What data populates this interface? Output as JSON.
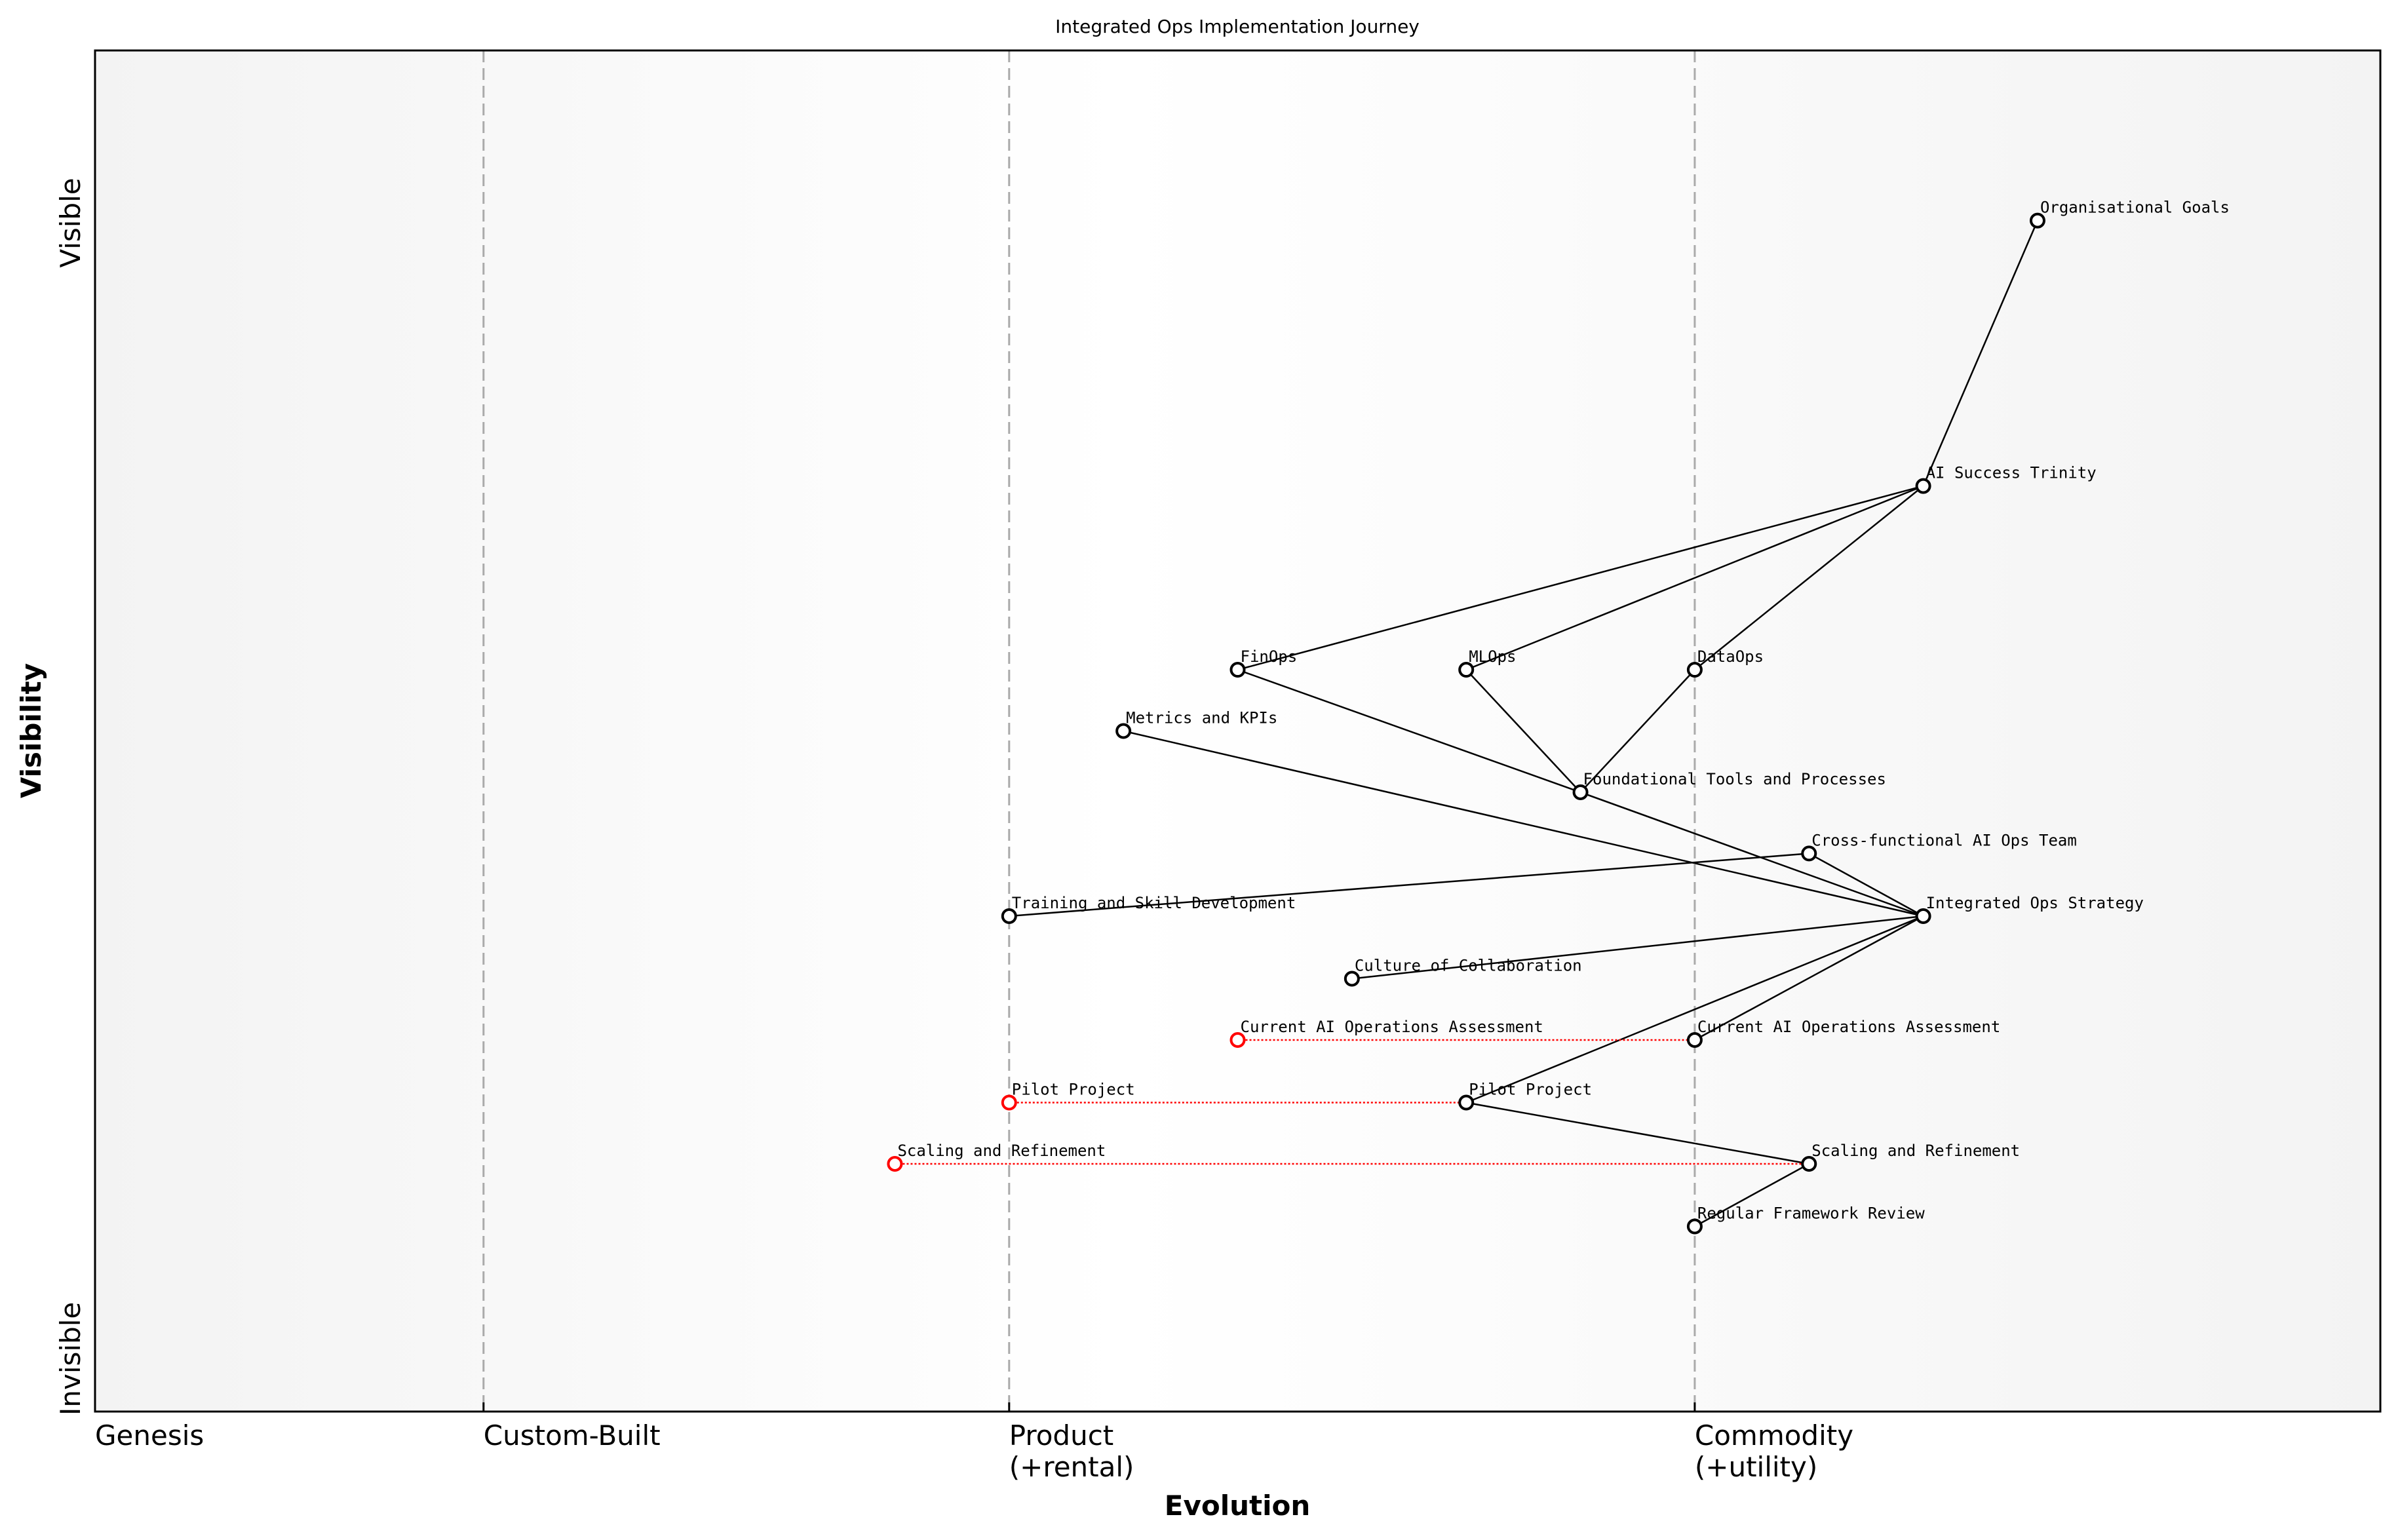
{
  "chart_data": {
    "type": "wardley-map",
    "title": "Integrated Ops Implementation Journey",
    "xlabel": "Evolution",
    "ylabel": "Visibility",
    "xlim": [
      0,
      1
    ],
    "ylim": [
      0,
      1
    ],
    "x_stages": [
      {
        "label": "Genesis",
        "x": 0.0
      },
      {
        "label": "Custom-Built",
        "x": 0.17
      },
      {
        "label": "Product\n(+rental)",
        "x": 0.4
      },
      {
        "label": "Commodity\n(+utility)",
        "x": 0.7
      }
    ],
    "y_labels": {
      "top": "Visible",
      "bottom": "Invisible"
    },
    "colors": {
      "component": "#000000",
      "evolved_from": "#ff0000",
      "stage_line": "#aaaaaa"
    },
    "components": [
      {
        "id": "goals",
        "label": "Organisational Goals",
        "x": 0.85,
        "y": 0.875
      },
      {
        "id": "trinity",
        "label": "AI Success Trinity",
        "x": 0.8,
        "y": 0.68
      },
      {
        "id": "finops",
        "label": "FinOps",
        "x": 0.5,
        "y": 0.545
      },
      {
        "id": "mlops",
        "label": "MLOps",
        "x": 0.6,
        "y": 0.545
      },
      {
        "id": "dataops",
        "label": "DataOps",
        "x": 0.7,
        "y": 0.545
      },
      {
        "id": "metrics",
        "label": "Metrics and KPIs",
        "x": 0.45,
        "y": 0.5
      },
      {
        "id": "foundational",
        "label": "Foundational Tools and Processes",
        "x": 0.65,
        "y": 0.455
      },
      {
        "id": "crossteam",
        "label": "Cross-functional AI Ops Team",
        "x": 0.75,
        "y": 0.41
      },
      {
        "id": "strategy",
        "label": "Integrated Ops Strategy",
        "x": 0.8,
        "y": 0.364
      },
      {
        "id": "training",
        "label": "Training and Skill Development",
        "x": 0.4,
        "y": 0.364
      },
      {
        "id": "culture",
        "label": "Culture of Collaboration",
        "x": 0.55,
        "y": 0.318
      },
      {
        "id": "assessment",
        "label": "Current AI Operations Assessment",
        "x": 0.7,
        "y": 0.273
      },
      {
        "id": "pilot",
        "label": "Pilot Project",
        "x": 0.6,
        "y": 0.227
      },
      {
        "id": "scaling",
        "label": "Scaling and Refinement",
        "x": 0.75,
        "y": 0.182
      },
      {
        "id": "review",
        "label": "Regular Framework Review",
        "x": 0.7,
        "y": 0.136
      }
    ],
    "evolutions": [
      {
        "label": "Current AI Operations Assessment",
        "from_x": 0.5,
        "to": "assessment"
      },
      {
        "label": "Pilot Project",
        "from_x": 0.4,
        "to": "pilot"
      },
      {
        "label": "Scaling and Refinement",
        "from_x": 0.35,
        "to": "scaling"
      }
    ],
    "links": [
      [
        "goals",
        "trinity"
      ],
      [
        "trinity",
        "finops"
      ],
      [
        "trinity",
        "mlops"
      ],
      [
        "trinity",
        "dataops"
      ],
      [
        "finops",
        "foundational"
      ],
      [
        "mlops",
        "foundational"
      ],
      [
        "dataops",
        "foundational"
      ],
      [
        "foundational",
        "strategy"
      ],
      [
        "metrics",
        "strategy"
      ],
      [
        "crossteam",
        "strategy"
      ],
      [
        "training",
        "crossteam"
      ],
      [
        "culture",
        "strategy"
      ],
      [
        "strategy",
        "assessment"
      ],
      [
        "strategy",
        "pilot"
      ],
      [
        "pilot",
        "scaling"
      ],
      [
        "scaling",
        "review"
      ]
    ]
  }
}
